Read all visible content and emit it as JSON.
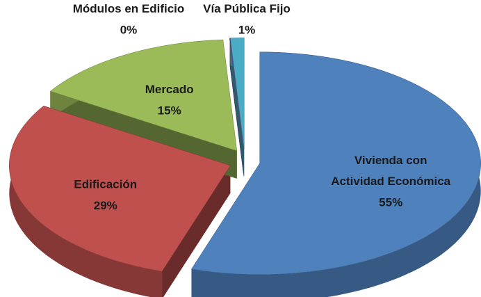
{
  "chart_data": {
    "type": "pie3d",
    "categories": [
      "Vivienda con\nActividad Económica",
      "Edificación",
      "Mercado",
      "Módulos en Edificio",
      "Vía Pública Fijo"
    ],
    "values": [
      55,
      29,
      15,
      0,
      1
    ],
    "value_labels": [
      "55%",
      "29%",
      "15%",
      "0%",
      "1%"
    ],
    "colors": [
      "#4f81bd",
      "#c0504d",
      "#9bbb59",
      "#8064a2",
      "#4bacc6"
    ]
  }
}
